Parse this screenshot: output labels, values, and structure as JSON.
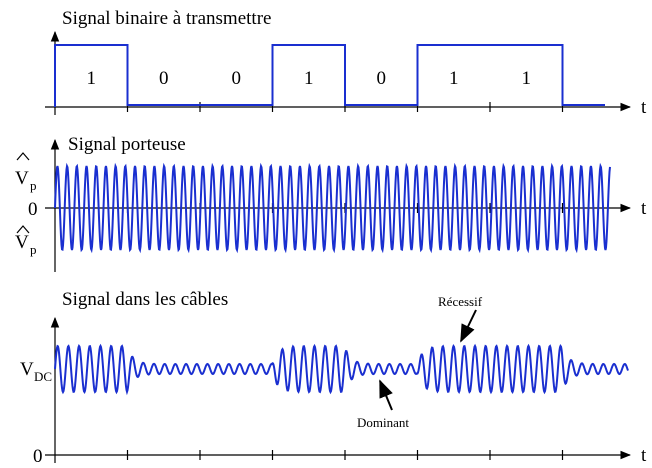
{
  "binary": {
    "title": "Signal binaire à transmettre",
    "axis_label": "t"
  },
  "bits": [
    "1",
    "0",
    "0",
    "1",
    "0",
    "1",
    "1"
  ],
  "carrier": {
    "title": "Signal porteuse",
    "axis_label": "t",
    "amplitude_symbol": "V",
    "amplitude_subscript": "p",
    "zero": "0"
  },
  "cable": {
    "title": "Signal dans les câbles",
    "axis_label": "t",
    "dc_symbol": "V",
    "dc_subscript": "DC",
    "zero": "0",
    "recessive": "Récessif",
    "dominant": "Dominant"
  }
}
